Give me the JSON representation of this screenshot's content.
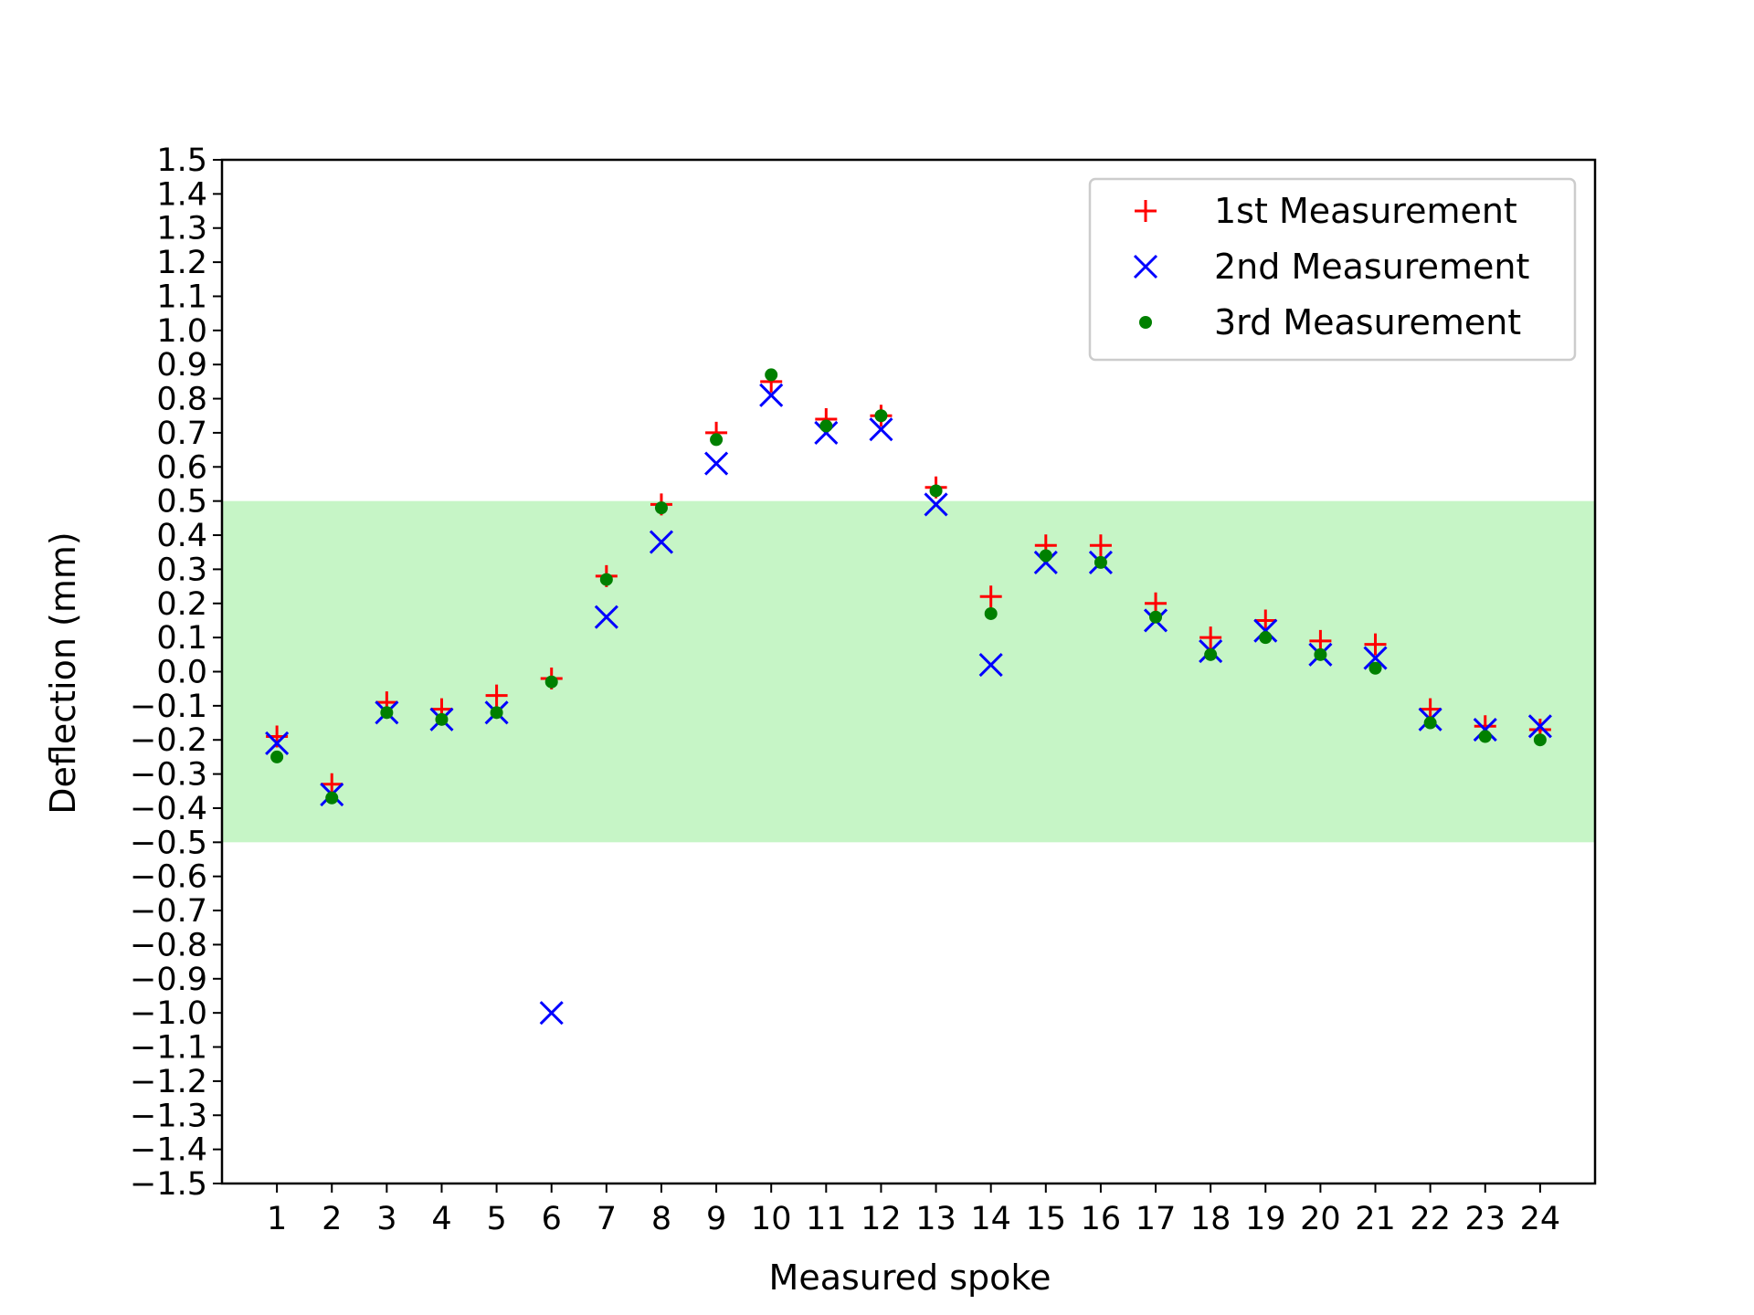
{
  "chart_data": {
    "type": "scatter",
    "xlabel": "Measured spoke",
    "ylabel": "Deflection (mm)",
    "xlim": [
      0,
      25
    ],
    "ylim": [
      -1.5,
      1.5
    ],
    "y_tick_step": 0.1,
    "categories": [
      "1",
      "2",
      "3",
      "4",
      "5",
      "6",
      "7",
      "8",
      "9",
      "10",
      "11",
      "12",
      "13",
      "14",
      "15",
      "16",
      "17",
      "18",
      "19",
      "20",
      "21",
      "22",
      "23",
      "24"
    ],
    "grid": false,
    "legend_position": "upper right",
    "tolerance_band": {
      "from": -0.5,
      "to": 0.5,
      "color": "#c6f5c6"
    },
    "series": [
      {
        "name": "1st Measurement",
        "marker": "plus",
        "color": "#ff0000",
        "values": [
          -0.19,
          -0.33,
          -0.09,
          -0.11,
          -0.07,
          -0.02,
          0.28,
          0.49,
          0.7,
          0.85,
          0.74,
          0.75,
          0.54,
          0.22,
          0.37,
          0.37,
          0.2,
          0.1,
          0.15,
          0.09,
          0.08,
          -0.11,
          -0.16,
          -0.17
        ]
      },
      {
        "name": "2nd Measurement",
        "marker": "x",
        "color": "#0000ff",
        "values": [
          -0.21,
          -0.36,
          -0.12,
          -0.14,
          -0.12,
          -1.0,
          0.16,
          0.38,
          0.61,
          0.81,
          0.7,
          0.71,
          0.49,
          0.02,
          0.32,
          0.32,
          0.15,
          0.06,
          0.12,
          0.05,
          0.04,
          -0.14,
          -0.17,
          -0.16
        ]
      },
      {
        "name": "3rd Measurement",
        "marker": "dot",
        "color": "#008000",
        "values": [
          -0.25,
          -0.37,
          -0.12,
          -0.14,
          -0.12,
          -0.03,
          0.27,
          0.48,
          0.68,
          0.87,
          0.72,
          0.75,
          0.53,
          0.17,
          0.34,
          0.32,
          0.16,
          0.05,
          0.1,
          0.05,
          0.01,
          -0.15,
          -0.19,
          -0.2
        ]
      }
    ]
  }
}
